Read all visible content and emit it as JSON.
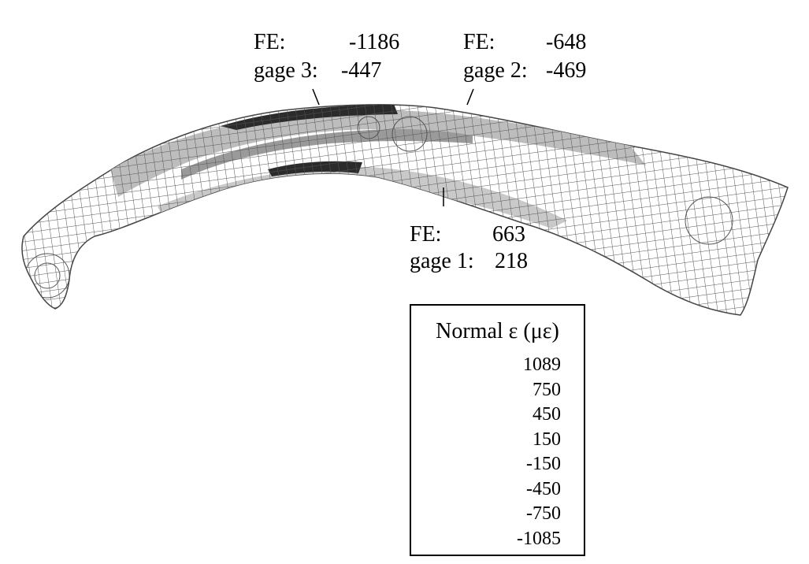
{
  "annotations": {
    "gage3": {
      "fe_label": "FE:",
      "fe_value": "-1186",
      "gage_label": "gage 3:",
      "gage_value": "-447"
    },
    "gage2": {
      "fe_label": "FE:",
      "fe_value": "-648",
      "gage_label": "gage 2:",
      "gage_value": "-469"
    },
    "gage1": {
      "fe_label": "FE:",
      "fe_value": "663",
      "gage_label": "gage 1:",
      "gage_value": "218"
    }
  },
  "legend": {
    "title": "Normal ε (με)",
    "ticks": [
      "1089",
      "750",
      "450",
      "150",
      "-150",
      "-450",
      "-750",
      "-1085"
    ],
    "band_colors": [
      "#2b2b2b",
      "#9a9a9a",
      "#d3d3d3",
      "#ffffff",
      "#d3d3d3",
      "#9a9a9a",
      "#2b2b2b"
    ]
  },
  "colors": {
    "mesh_line": "#555555",
    "high_strain": "#2b2b2b",
    "mid_strain": "#9a9a9a",
    "low_strain": "#d3d3d3"
  }
}
